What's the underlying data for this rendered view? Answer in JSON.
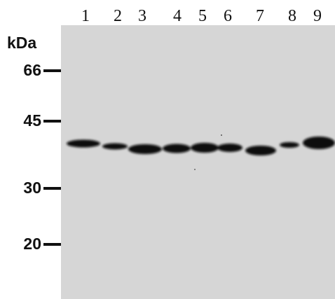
{
  "lanes": [
    "1",
    "2",
    "3",
    "4",
    "5",
    "6",
    "7",
    "8",
    "9"
  ],
  "unit": "kDa",
  "markers": [
    66,
    45,
    30,
    20
  ]
}
